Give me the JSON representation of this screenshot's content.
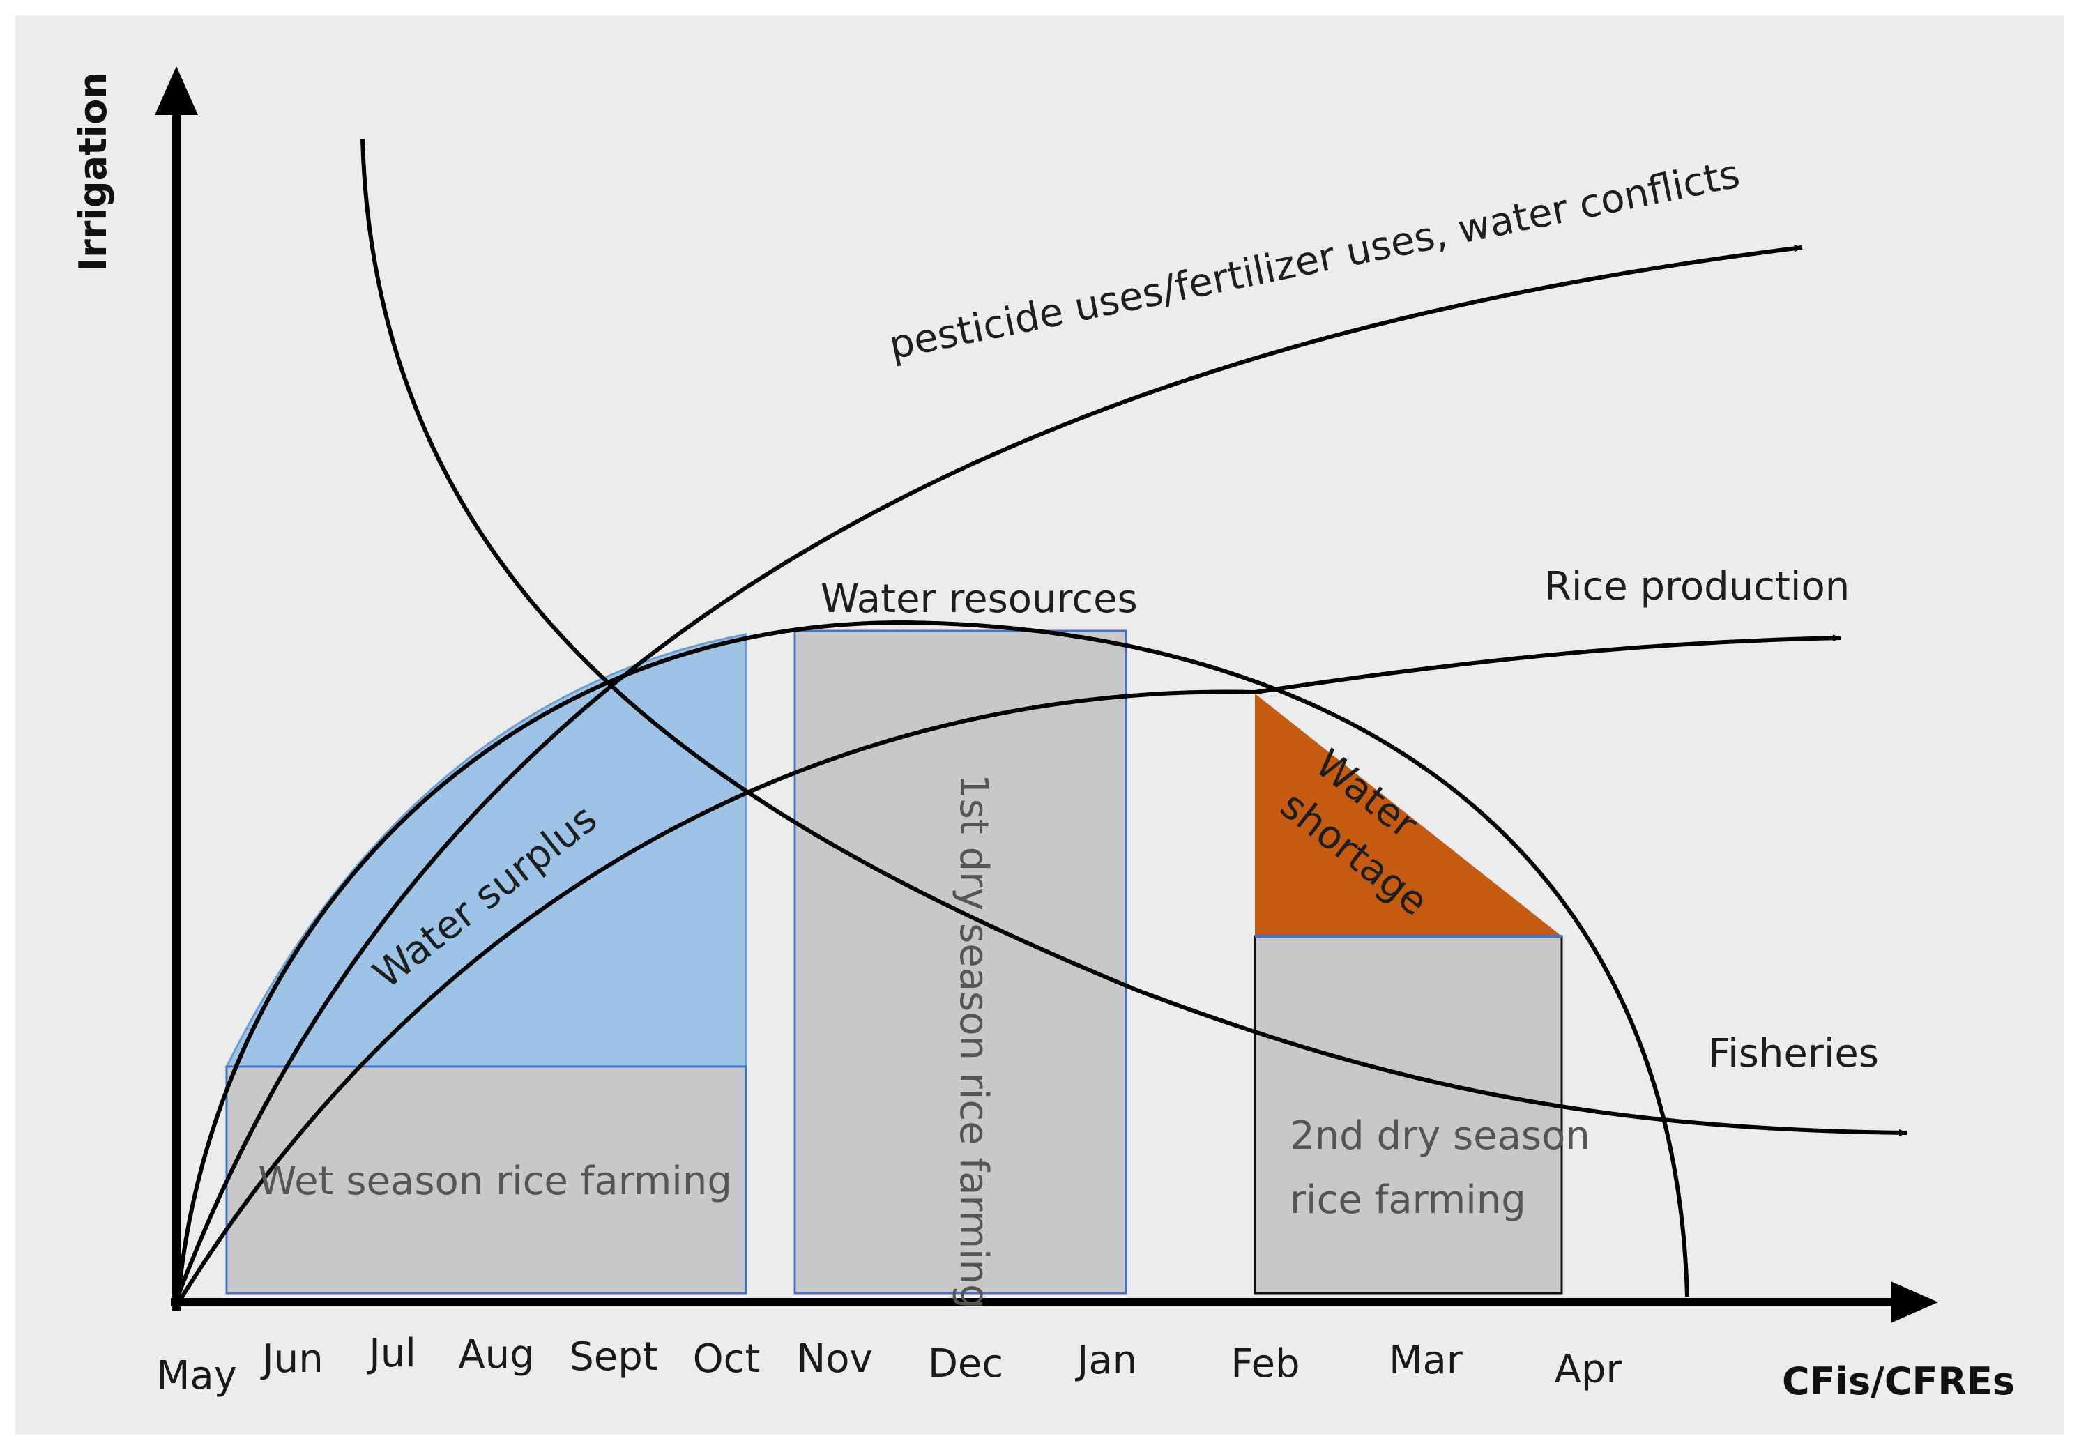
{
  "colors": {
    "background": "#ececec",
    "water_surplus": "#9dc3e6",
    "water_shortage": "#c55a11",
    "rice_farming_block": "#c8c8c8",
    "block_border": "#4472c4",
    "curves": "#000000"
  },
  "axes": {
    "y_title": "Irrigation",
    "x_title": "CFis/CFREs"
  },
  "months": [
    "May",
    "Jun",
    "Jul",
    "Aug",
    "Sept",
    "Oct",
    "Nov",
    "Dec",
    "Jan",
    "Feb",
    "Mar",
    "Apr"
  ],
  "curves": {
    "pesticide": "pesticide uses/fertilizer uses, water conflicts",
    "water_resources": "Water resources",
    "rice_production": "Rice production",
    "fisheries": "Fisheries"
  },
  "regions": {
    "water_surplus": "Water surplus",
    "water_shortage_line1": "Water",
    "water_shortage_line2": "shortage",
    "wet_season": "Wet season rice farming",
    "first_dry": "1st dry season rice farming",
    "second_dry_line1": "2nd dry season",
    "second_dry_line2": "rice farming"
  }
}
